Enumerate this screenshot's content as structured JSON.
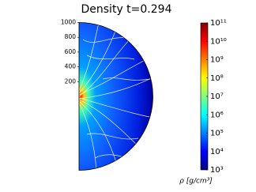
{
  "chart_data": {
    "type": "heatmap",
    "title": "Density t=0.294",
    "ylim": [
      -1000,
      1000
    ],
    "yticks": [
      200,
      400,
      600,
      800,
      1000
    ],
    "colormap": "jet",
    "colorbar_log": true,
    "clim": [
      1000,
      100000000000
    ],
    "colorbar_ticks": [
      {
        "value": 1000,
        "label": "10³"
      },
      {
        "value": 10000,
        "label": "10⁴"
      },
      {
        "value": 100000,
        "label": "10⁵"
      },
      {
        "value": 1000000,
        "label": "10⁶"
      },
      {
        "value": 10000000,
        "label": "10⁷"
      },
      {
        "value": 100000000,
        "label": "10⁸"
      },
      {
        "value": 1000000000,
        "label": "10⁹"
      },
      {
        "value": 10000000000,
        "label": "10¹⁰"
      },
      {
        "value": 100000000000,
        "label": "10¹¹"
      }
    ],
    "colorbar_label": "ρ [g/cm³]"
  }
}
